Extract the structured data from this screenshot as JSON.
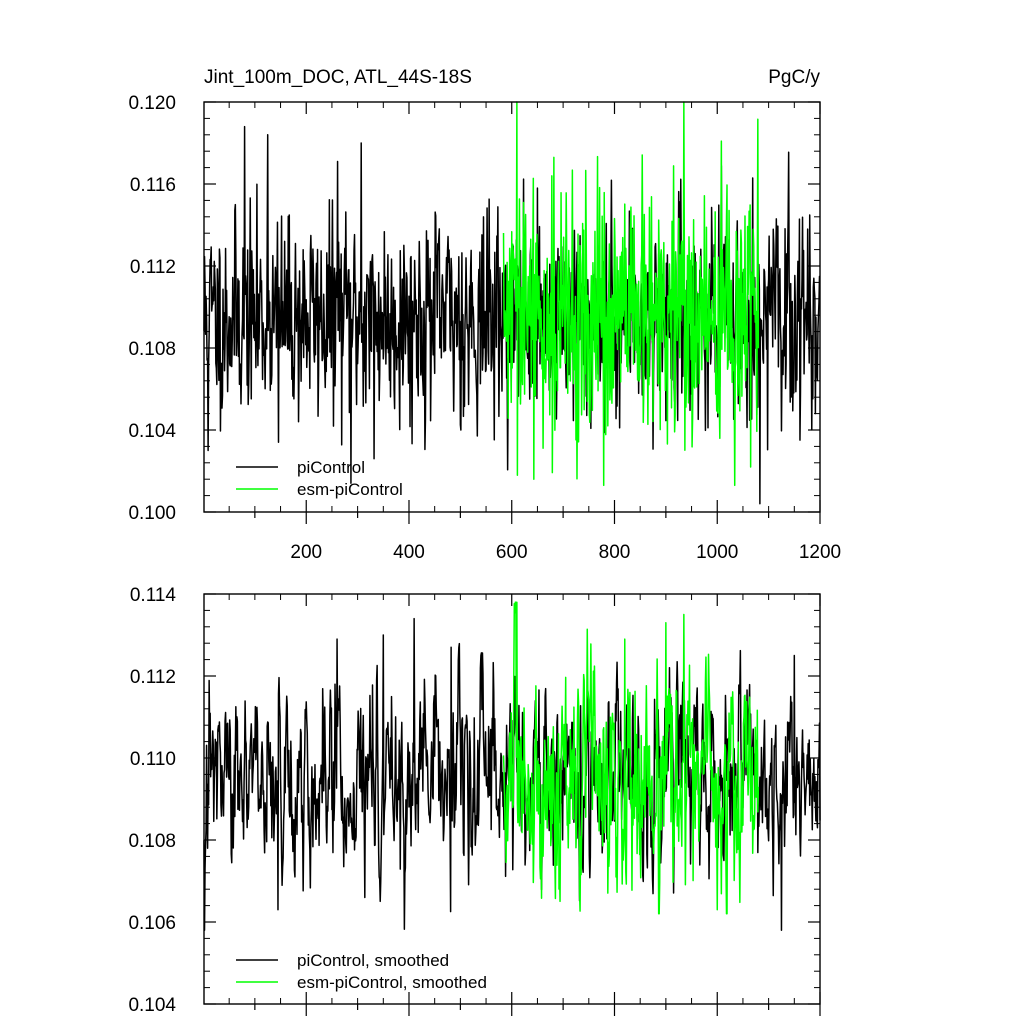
{
  "chart_data": [
    {
      "type": "line",
      "title": "Jint_100m_DOC, ATL_44S-18S",
      "units": "PgC/y",
      "xlabel": "",
      "ylabel": "",
      "xlim": [
        1,
        1200
      ],
      "ylim": [
        0.1,
        0.12
      ],
      "xticks": [
        200,
        400,
        600,
        800,
        1000,
        1200
      ],
      "xtick_labels": [
        "200",
        "400",
        "600",
        "800",
        "1000",
        "1200"
      ],
      "yticks": [
        0.1,
        0.104,
        0.108,
        0.112,
        0.116,
        0.12
      ],
      "ytick_labels": [
        "0.100",
        "0.104",
        "0.108",
        "0.112",
        "0.116",
        "0.120"
      ],
      "grid": false,
      "legend_position": "bottom-left",
      "series": [
        {
          "name": "piControl",
          "color": "#000000",
          "x_range": [
            1,
            1200
          ],
          "mean": 0.1095,
          "noise_sd": 0.0024,
          "noise_ar": 0.15,
          "min": 0.1005,
          "max": 0.1189,
          "notable_points": [
            [
              9,
              0.103
            ],
            [
              80,
              0.1188
            ],
            [
              125,
              0.1184
            ],
            [
              146,
              0.1034
            ],
            [
              261,
              0.1171
            ],
            [
              287,
              0.1014
            ],
            [
              307,
              0.118
            ],
            [
              332,
              0.1026
            ],
            [
              1083,
              0.1004
            ]
          ],
          "seed": 11
        },
        {
          "name": "esm-piControl",
          "color": "#00ff00",
          "x_range": [
            584,
            1080
          ],
          "mean": 0.1094,
          "noise_sd": 0.003,
          "noise_ar": 0.05,
          "min": 0.1013,
          "max": 0.12,
          "notable_points": [
            [
              610,
              0.12
            ],
            [
              643,
              0.1016
            ],
            [
              779,
              0.1013
            ],
            [
              935,
              0.12
            ]
          ],
          "seed": 29
        }
      ]
    },
    {
      "type": "line",
      "title": "",
      "xlabel": "",
      "ylabel": "",
      "xlim": [
        1,
        1200
      ],
      "ylim": [
        0.104,
        0.114
      ],
      "xticks": [
        200,
        400,
        600,
        800,
        1000,
        1200
      ],
      "xtick_labels": [],
      "yticks": [
        0.104,
        0.106,
        0.108,
        0.11,
        0.112,
        0.114
      ],
      "ytick_labels": [
        "0.104",
        "0.106",
        "0.108",
        "0.110",
        "0.112",
        "0.114"
      ],
      "grid": false,
      "legend_position": "bottom-left",
      "series": [
        {
          "name": "piControl, smoothed",
          "color": "#000000",
          "x_range": [
            1,
            1200
          ],
          "mean": 0.1094,
          "noise_sd": 0.0011,
          "noise_ar": 0.6,
          "min": 0.1058,
          "max": 0.1134,
          "notable_points": [
            [
              8,
              0.1078
            ],
            [
              145,
              0.1063
            ],
            [
              260,
              0.1129
            ],
            [
              350,
              0.113
            ],
            [
              410,
              0.1134
            ],
            [
              482,
              0.1127
            ],
            [
              1125,
              0.1058
            ],
            [
              1150,
              0.1125
            ],
            [
              1195,
              0.1083
            ]
          ],
          "seed": 47
        },
        {
          "name": "esm-piControl, smoothed",
          "color": "#00ff00",
          "x_range": [
            584,
            1080
          ],
          "mean": 0.1094,
          "noise_sd": 0.0014,
          "noise_ar": 0.55,
          "min": 0.1062,
          "max": 0.1138,
          "notable_points": [
            [
              610,
              0.1138
            ],
            [
              820,
              0.1129
            ],
            [
              900,
              0.1133
            ],
            [
              935,
              0.1135
            ],
            [
              1000,
              0.1063
            ]
          ],
          "seed": 83
        }
      ]
    }
  ]
}
